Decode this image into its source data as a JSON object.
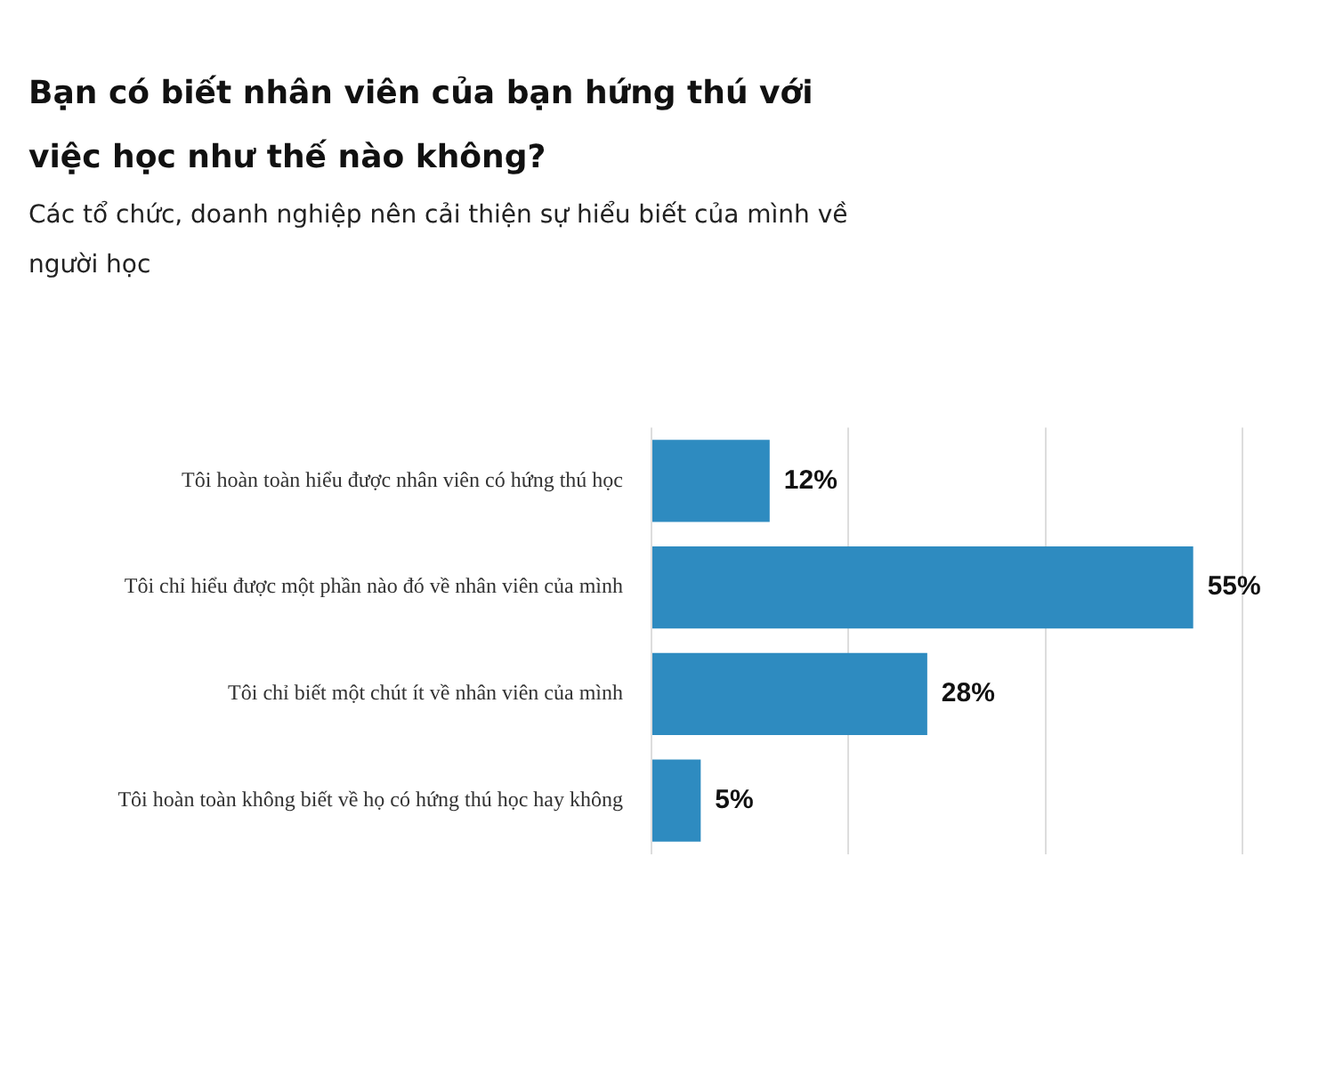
{
  "chart_data": {
    "type": "bar",
    "orientation": "horizontal",
    "title": "Bạn có biết nhân viên của bạn hứng thú với việc học như thế nào không?",
    "subtitle": "Các tổ chức, doanh nghiệp nên cải thiện sự hiểu biết của mình về người học",
    "categories": [
      "Tôi hoàn toàn hiểu được nhân viên có hứng thú học",
      "Tôi chỉ hiểu được một phần nào đó về nhân viên của mình",
      "Tôi chỉ biết một chút ít về nhân viên của mình",
      "Tôi hoàn toàn không biết về họ có hứng thú học hay không"
    ],
    "values": [
      12,
      55,
      28,
      5
    ],
    "value_labels": [
      "12%",
      "55%",
      "28%",
      "5%"
    ],
    "color": "#2e8bc0",
    "xlim": [
      0,
      60
    ],
    "xticks": [
      {
        "value": 0,
        "label": null
      },
      {
        "value": 20,
        "label": null
      },
      {
        "value": 40,
        "label": null
      },
      {
        "value": 60,
        "label": null
      }
    ],
    "grid": "x",
    "tick_labels": "y",
    "legend": false
  }
}
